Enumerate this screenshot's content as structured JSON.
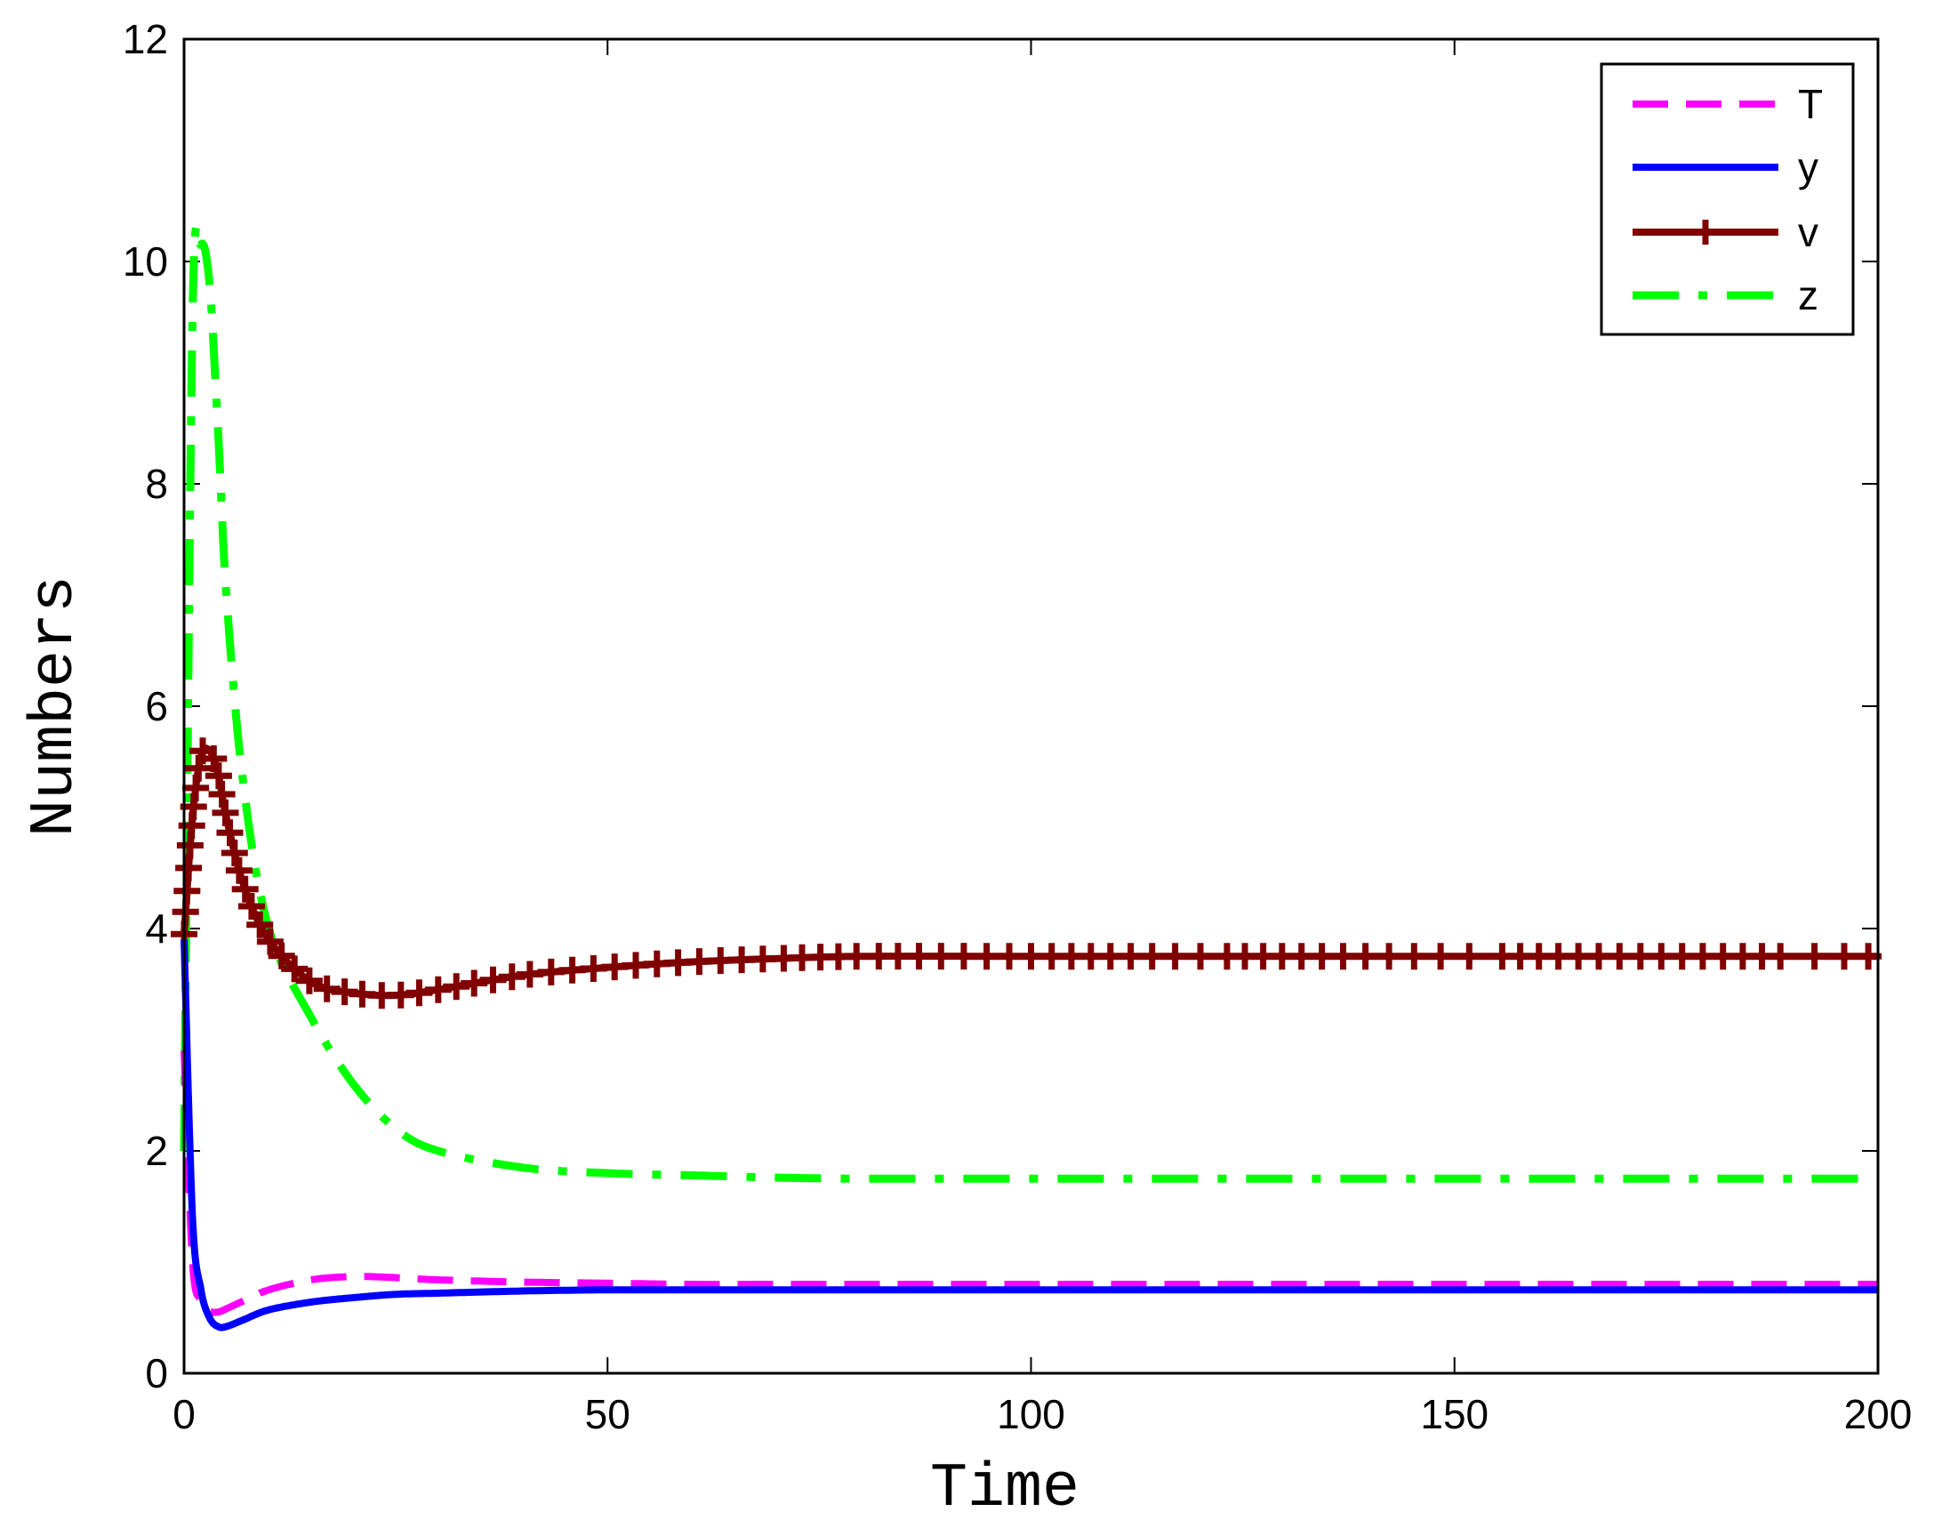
{
  "chart_data": {
    "type": "line",
    "title": "",
    "xlabel": "Time",
    "ylabel": "Numbers",
    "xlim": [
      0,
      200
    ],
    "ylim": [
      0,
      12
    ],
    "xticks": [
      "0",
      "50",
      "100",
      "150",
      "200"
    ],
    "yticks": [
      "0",
      "2",
      "4",
      "6",
      "8",
      "10",
      "12"
    ],
    "grid": false,
    "legend_position": "top-right",
    "x": [
      0,
      1,
      2,
      3,
      4,
      5,
      7,
      10,
      15,
      20,
      25,
      30,
      40,
      50,
      60,
      70,
      80,
      100,
      120,
      150,
      200
    ],
    "series": [
      {
        "name": "T",
        "color": "#ff00ff",
        "style": "dashed",
        "values": [
          2.9,
          1.0,
          0.65,
          0.56,
          0.55,
          0.58,
          0.65,
          0.75,
          0.84,
          0.87,
          0.86,
          0.84,
          0.82,
          0.81,
          0.8,
          0.8,
          0.8,
          0.8,
          0.8,
          0.8,
          0.8
        ]
      },
      {
        "name": "y",
        "color": "#0000ff",
        "style": "solid",
        "values": [
          3.9,
          1.4,
          0.75,
          0.5,
          0.42,
          0.42,
          0.48,
          0.57,
          0.64,
          0.68,
          0.71,
          0.72,
          0.74,
          0.75,
          0.75,
          0.75,
          0.75,
          0.75,
          0.75,
          0.75,
          0.75
        ]
      },
      {
        "name": "v",
        "color": "#800000",
        "style": "solid-plus-markers",
        "values": [
          3.95,
          5.0,
          5.55,
          5.6,
          5.4,
          5.0,
          4.4,
          3.9,
          3.52,
          3.42,
          3.4,
          3.45,
          3.58,
          3.65,
          3.7,
          3.73,
          3.75,
          3.75,
          3.75,
          3.75,
          3.75
        ]
      },
      {
        "name": "z",
        "color": "#00ff00",
        "style": "dash-dot",
        "values": [
          2.0,
          9.5,
          10.15,
          9.8,
          8.5,
          7.0,
          5.3,
          4.0,
          3.2,
          2.6,
          2.2,
          2.0,
          1.85,
          1.8,
          1.78,
          1.76,
          1.75,
          1.75,
          1.75,
          1.75,
          1.75
        ]
      }
    ]
  }
}
